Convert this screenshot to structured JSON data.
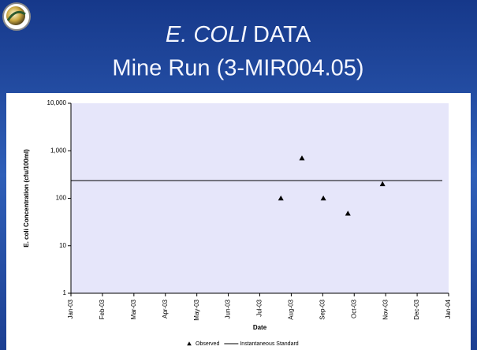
{
  "slide": {
    "title_italic": "E. COLI",
    "title_rest": "DATA",
    "subtitle": "Mine Run (3-MIR004.05)"
  },
  "chart_data": {
    "type": "scatter",
    "xlabel": "Date",
    "ylabel": "E. coli Concentration (cfu/100ml)",
    "xlim": [
      0,
      12
    ],
    "xticks": [
      {
        "value": 0,
        "label": "Jan-03"
      },
      {
        "value": 1,
        "label": "Feb-03"
      },
      {
        "value": 2,
        "label": "Mar-03"
      },
      {
        "value": 3,
        "label": "Apr-03"
      },
      {
        "value": 4,
        "label": "May-03"
      },
      {
        "value": 5,
        "label": "Jun-03"
      },
      {
        "value": 6,
        "label": "Jul-03"
      },
      {
        "value": 7,
        "label": "Aug-03"
      },
      {
        "value": 8,
        "label": "Sep-03"
      },
      {
        "value": 9,
        "label": "Oct-03"
      },
      {
        "value": 10,
        "label": "Nov-03"
      },
      {
        "value": 11,
        "label": "Dec-03"
      },
      {
        "value": 12,
        "label": "Jan-04"
      }
    ],
    "ylim": [
      1,
      10000
    ],
    "yticks": [
      1,
      10,
      100,
      {
        "value": 1000,
        "label": "1,000"
      },
      {
        "value": 10000,
        "label": "10,000"
      }
    ],
    "log_y": true,
    "series": [
      {
        "name": "Observed",
        "mode": "markers",
        "color": "#000000",
        "x": [
          6.67,
          7.34,
          8.02,
          8.8,
          9.9
        ],
        "values": [
          100,
          700,
          100,
          48,
          200
        ]
      },
      {
        "name": "Instantaneous Standard",
        "mode": "lines",
        "color": "#000000",
        "x": [
          0,
          11.8
        ],
        "values": [
          235,
          235
        ]
      }
    ]
  }
}
